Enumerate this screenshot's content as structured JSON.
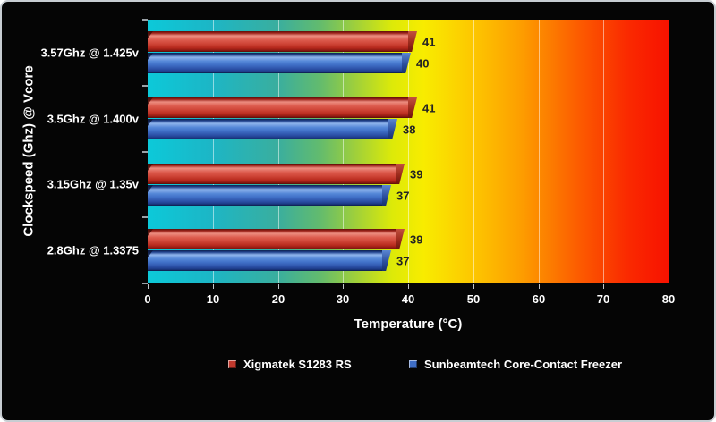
{
  "frame": {
    "background": "#050505",
    "border_color": "#c7cdd2"
  },
  "chart_data": {
    "type": "bar",
    "orientation": "horizontal",
    "title": "",
    "categories": [
      "3.57Ghz @ 1.425v",
      "3.5Ghz @ 1.400v",
      "3.15Ghz @ 1.35v",
      "2.8Ghz @ 1.3375"
    ],
    "series": [
      {
        "name": "Xigmatek S1283 RS",
        "color": "#c23a2e",
        "values": [
          41,
          41,
          39,
          39
        ]
      },
      {
        "name": "Sunbeamtech Core-Contact Freezer",
        "color": "#3f6ec6",
        "values": [
          40,
          38,
          37,
          37
        ]
      }
    ],
    "xlabel": "Temperature (°C)",
    "ylabel": "Clockspeed (Ghz) @ Vcore",
    "xlim": [
      0,
      80
    ],
    "xticks": [
      0,
      10,
      20,
      30,
      40,
      50,
      60,
      70,
      80
    ],
    "grid": true,
    "gridline_color": "rgba(255,255,255,0.5)",
    "value_label_color": "#232323",
    "legend_position": "bottom",
    "plot_background_stops": [
      "#0cc9d9 0%",
      "#1cb6c6 12%",
      "#3aae9e 25%",
      "#62bb6e 33%",
      "#a0d03a 40%",
      "#ddea08 47%",
      "#f8ec00 53%",
      "#fdc900 62%",
      "#fd9c00 72%",
      "#fc6000 82%",
      "#fa2a00 92%",
      "#f81200 100%"
    ]
  }
}
